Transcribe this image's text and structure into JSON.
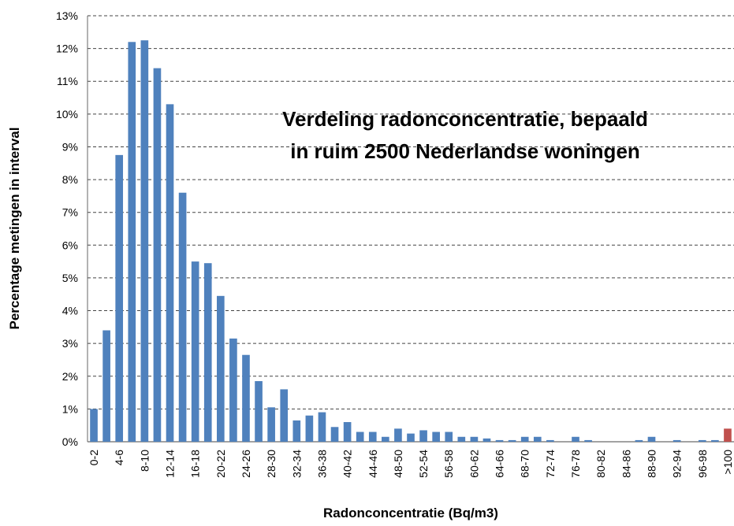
{
  "chart_data": {
    "type": "bar",
    "title": [
      "Verdeling radonconcentratie, bepaald",
      "in ruim 2500 Nederlandse woningen"
    ],
    "x_label": "Radonconcentratie (Bq/m3)",
    "y_label": "Percentage metingen in interval",
    "categories": [
      "0-2",
      null,
      "4-6",
      null,
      "8-10",
      null,
      "12-14",
      null,
      "16-18",
      null,
      "20-22",
      null,
      "24-26",
      null,
      "28-30",
      null,
      "32-34",
      null,
      "36-38",
      null,
      "40-42",
      null,
      "44-46",
      null,
      "48-50",
      null,
      "52-54",
      null,
      "56-58",
      null,
      "60-62",
      null,
      "64-66",
      null,
      "68-70",
      null,
      "72-74",
      null,
      "76-78",
      null,
      "80-82",
      null,
      "84-86",
      null,
      "88-90",
      null,
      "92-94",
      null,
      "96-98",
      null,
      ">100"
    ],
    "values": [
      1.0,
      3.4,
      8.75,
      12.2,
      12.25,
      11.4,
      10.3,
      7.6,
      5.5,
      5.45,
      4.45,
      3.15,
      2.65,
      1.85,
      1.05,
      1.6,
      0.65,
      0.8,
      0.9,
      0.45,
      0.6,
      0.3,
      0.3,
      0.15,
      0.4,
      0.25,
      0.35,
      0.3,
      0.3,
      0.15,
      0.15,
      0.1,
      0.05,
      0.05,
      0.15,
      0.15,
      0.05,
      0,
      0.15,
      0.05,
      0,
      0,
      0,
      0.05,
      0.15,
      0,
      0.05,
      0,
      0.05,
      0.05,
      0.4
    ],
    "color": "#4f81bd",
    "colors": {
      "50": "#c0504d"
    },
    "ylim": [
      0,
      13
    ],
    "yticks": [
      {
        "value": 0,
        "label": "0%"
      },
      {
        "value": 1,
        "label": "1%"
      },
      {
        "value": 2,
        "label": "2%"
      },
      {
        "value": 3,
        "label": "3%"
      },
      {
        "value": 4,
        "label": "4%"
      },
      {
        "value": 5,
        "label": "5%"
      },
      {
        "value": 6,
        "label": "6%"
      },
      {
        "value": 7,
        "label": "7%"
      },
      {
        "value": 8,
        "label": "8%"
      },
      {
        "value": 9,
        "label": "9%"
      },
      {
        "value": 10,
        "label": "10%"
      },
      {
        "value": 11,
        "label": "11%"
      },
      {
        "value": 12,
        "label": "12%"
      },
      {
        "value": 13,
        "label": "13%"
      }
    ],
    "grid": true
  }
}
